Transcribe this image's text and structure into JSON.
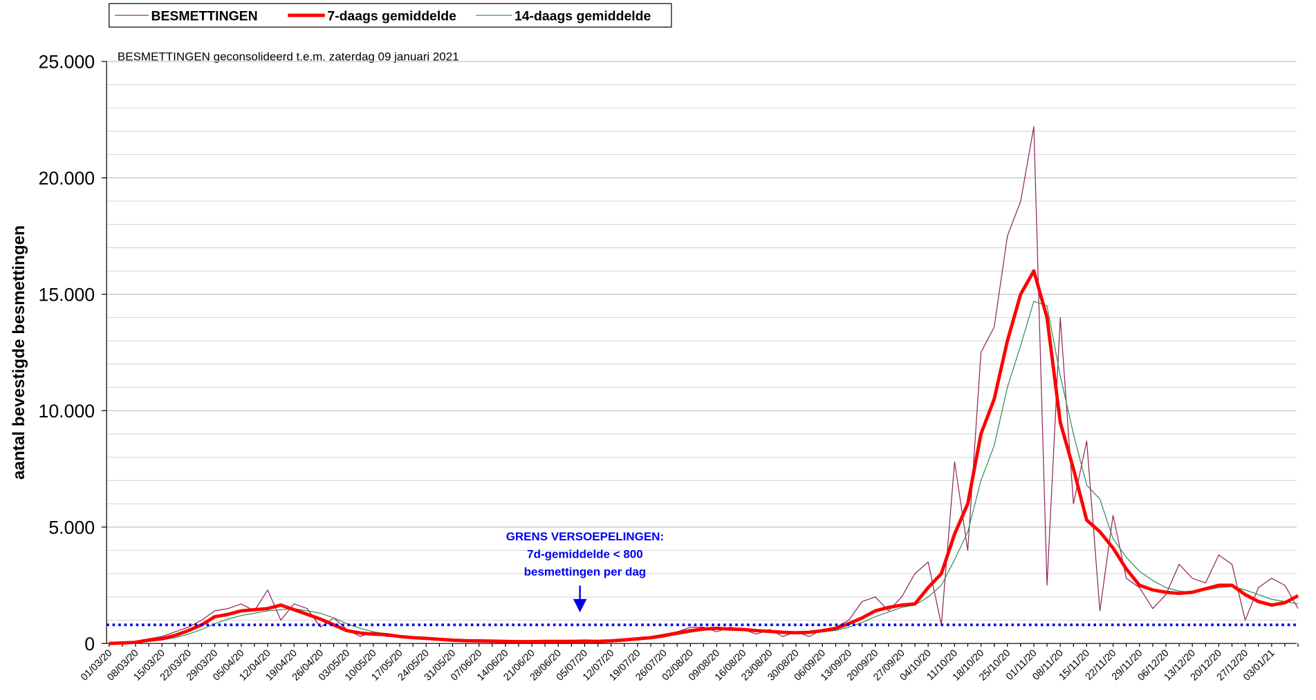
{
  "chart_data": {
    "type": "line",
    "title": "BESMETTINGEN geconsolideerd t.e.m. zaterdag 09 januari 2021",
    "y_label": "aantal bevestigde besmettingen",
    "categories": [
      "01/03/20",
      null,
      "08/03/20",
      null,
      "15/03/20",
      null,
      "22/03/20",
      null,
      "29/03/20",
      null,
      "05/04/20",
      null,
      "12/04/20",
      null,
      "19/04/20",
      null,
      "26/04/20",
      null,
      "03/05/20",
      null,
      "10/05/20",
      null,
      "17/05/20",
      null,
      "24/05/20",
      null,
      "31/05/20",
      null,
      "07/06/20",
      null,
      "14/06/20",
      null,
      "21/06/20",
      null,
      "28/06/20",
      null,
      "05/07/20",
      null,
      "12/07/20",
      null,
      "19/07/20",
      null,
      "26/07/20",
      null,
      "02/08/20",
      null,
      "09/08/20",
      null,
      "16/08/20",
      null,
      "23/08/20",
      null,
      "30/08/20",
      null,
      "06/09/20",
      null,
      "13/09/20",
      null,
      "20/09/20",
      null,
      "27/09/20",
      null,
      "04/10/20",
      null,
      "11/10/20",
      null,
      "18/10/20",
      null,
      "25/10/20",
      null,
      "01/11/20",
      null,
      "08/11/20",
      null,
      "15/11/20",
      null,
      "22/11/20",
      null,
      "29/11/20",
      null,
      "06/12/20",
      null,
      "13/12/20",
      null,
      "20/12/20",
      null,
      "27/12/20",
      null,
      "03/01/21",
      null,
      null
    ],
    "series": [
      {
        "name": "BESMETTINGEN",
        "color": "#8e2159",
        "width": 1,
        "values": [
          0,
          30,
          60,
          200,
          300,
          500,
          700,
          1000,
          1400,
          1500,
          1700,
          1400,
          2300,
          1000,
          1700,
          1500,
          700,
          1100,
          600,
          300,
          500,
          300,
          300,
          200,
          250,
          150,
          100,
          150,
          100,
          90,
          80,
          60,
          80,
          120,
          100,
          90,
          110,
          80,
          150,
          160,
          250,
          300,
          400,
          500,
          700,
          700,
          500,
          700,
          600,
          400,
          600,
          300,
          500,
          300,
          600,
          700,
          1000,
          1800,
          2000,
          1400,
          2000,
          3000,
          3500,
          800,
          7800,
          4000,
          12500,
          13600,
          17500,
          19000,
          22200,
          2500,
          14000,
          6000,
          8700,
          1400,
          5500,
          2800,
          2400,
          1500,
          2100,
          3400,
          2800,
          2600,
          3800,
          3400,
          1000,
          2400,
          2800,
          2500,
          1500
        ]
      },
      {
        "name": "7-daags gemiddelde",
        "color": "#ff0000",
        "width": 4,
        "values": [
          0,
          20,
          50,
          150,
          200,
          350,
          550,
          800,
          1150,
          1250,
          1400,
          1450,
          1500,
          1650,
          1450,
          1250,
          1050,
          800,
          550,
          450,
          400,
          380,
          300,
          250,
          220,
          180,
          140,
          120,
          110,
          100,
          90,
          80,
          80,
          90,
          90,
          90,
          100,
          90,
          110,
          150,
          200,
          250,
          330,
          450,
          550,
          620,
          650,
          620,
          600,
          550,
          520,
          480,
          460,
          480,
          550,
          650,
          850,
          1100,
          1400,
          1550,
          1650,
          1700,
          2400,
          3000,
          4700,
          6000,
          9000,
          10500,
          13000,
          15000,
          16000,
          14000,
          9500,
          7500,
          5300,
          4800,
          4100,
          3200,
          2500,
          2300,
          2200,
          2150,
          2200,
          2350,
          2500,
          2500,
          2100,
          1800,
          1650,
          1750,
          2050
        ]
      },
      {
        "name": "14-daags gemiddelde",
        "color": "#2e8b57",
        "width": 1,
        "values": [
          0,
          10,
          30,
          80,
          150,
          250,
          400,
          600,
          850,
          1050,
          1200,
          1300,
          1400,
          1450,
          1500,
          1400,
          1300,
          1100,
          850,
          650,
          500,
          420,
          350,
          300,
          250,
          210,
          170,
          140,
          120,
          110,
          100,
          90,
          85,
          85,
          90,
          90,
          95,
          95,
          100,
          130,
          170,
          220,
          280,
          380,
          480,
          570,
          620,
          640,
          620,
          590,
          550,
          520,
          490,
          470,
          500,
          560,
          700,
          900,
          1150,
          1350,
          1550,
          1650,
          2000,
          2500,
          3600,
          4800,
          7000,
          8500,
          11000,
          12800,
          14700,
          14500,
          11500,
          9000,
          6800,
          6200,
          4500,
          3700,
          3100,
          2700,
          2400,
          2250,
          2200,
          2300,
          2400,
          2450,
          2300,
          2100,
          1900,
          1800,
          1700
        ]
      }
    ],
    "ylim": [
      0,
      25000
    ],
    "yticks": [
      0,
      {
        "value": 5000,
        "label": "5.000"
      },
      {
        "value": 10000,
        "label": "10.000"
      },
      {
        "value": 15000,
        "label": "15.000"
      },
      {
        "value": 20000,
        "label": "20.000"
      },
      {
        "value": 25000,
        "label": "25.000"
      }
    ],
    "minor_yticks": [
      1000,
      2000,
      3000,
      4000,
      6000,
      7000,
      8000,
      9000,
      11000,
      12000,
      13000,
      14000,
      16000,
      17000,
      18000,
      19000,
      21000,
      22000,
      23000,
      24000
    ],
    "reference_line": {
      "value": 800,
      "color": "#0000ee"
    },
    "annotation": {
      "lines": [
        "GRENS VERSOEPELINGEN:",
        "7d-gemiddelde < 800",
        "besmettingen per dag"
      ],
      "color": "#0000ee"
    },
    "grid": true,
    "legend": "top-left"
  }
}
